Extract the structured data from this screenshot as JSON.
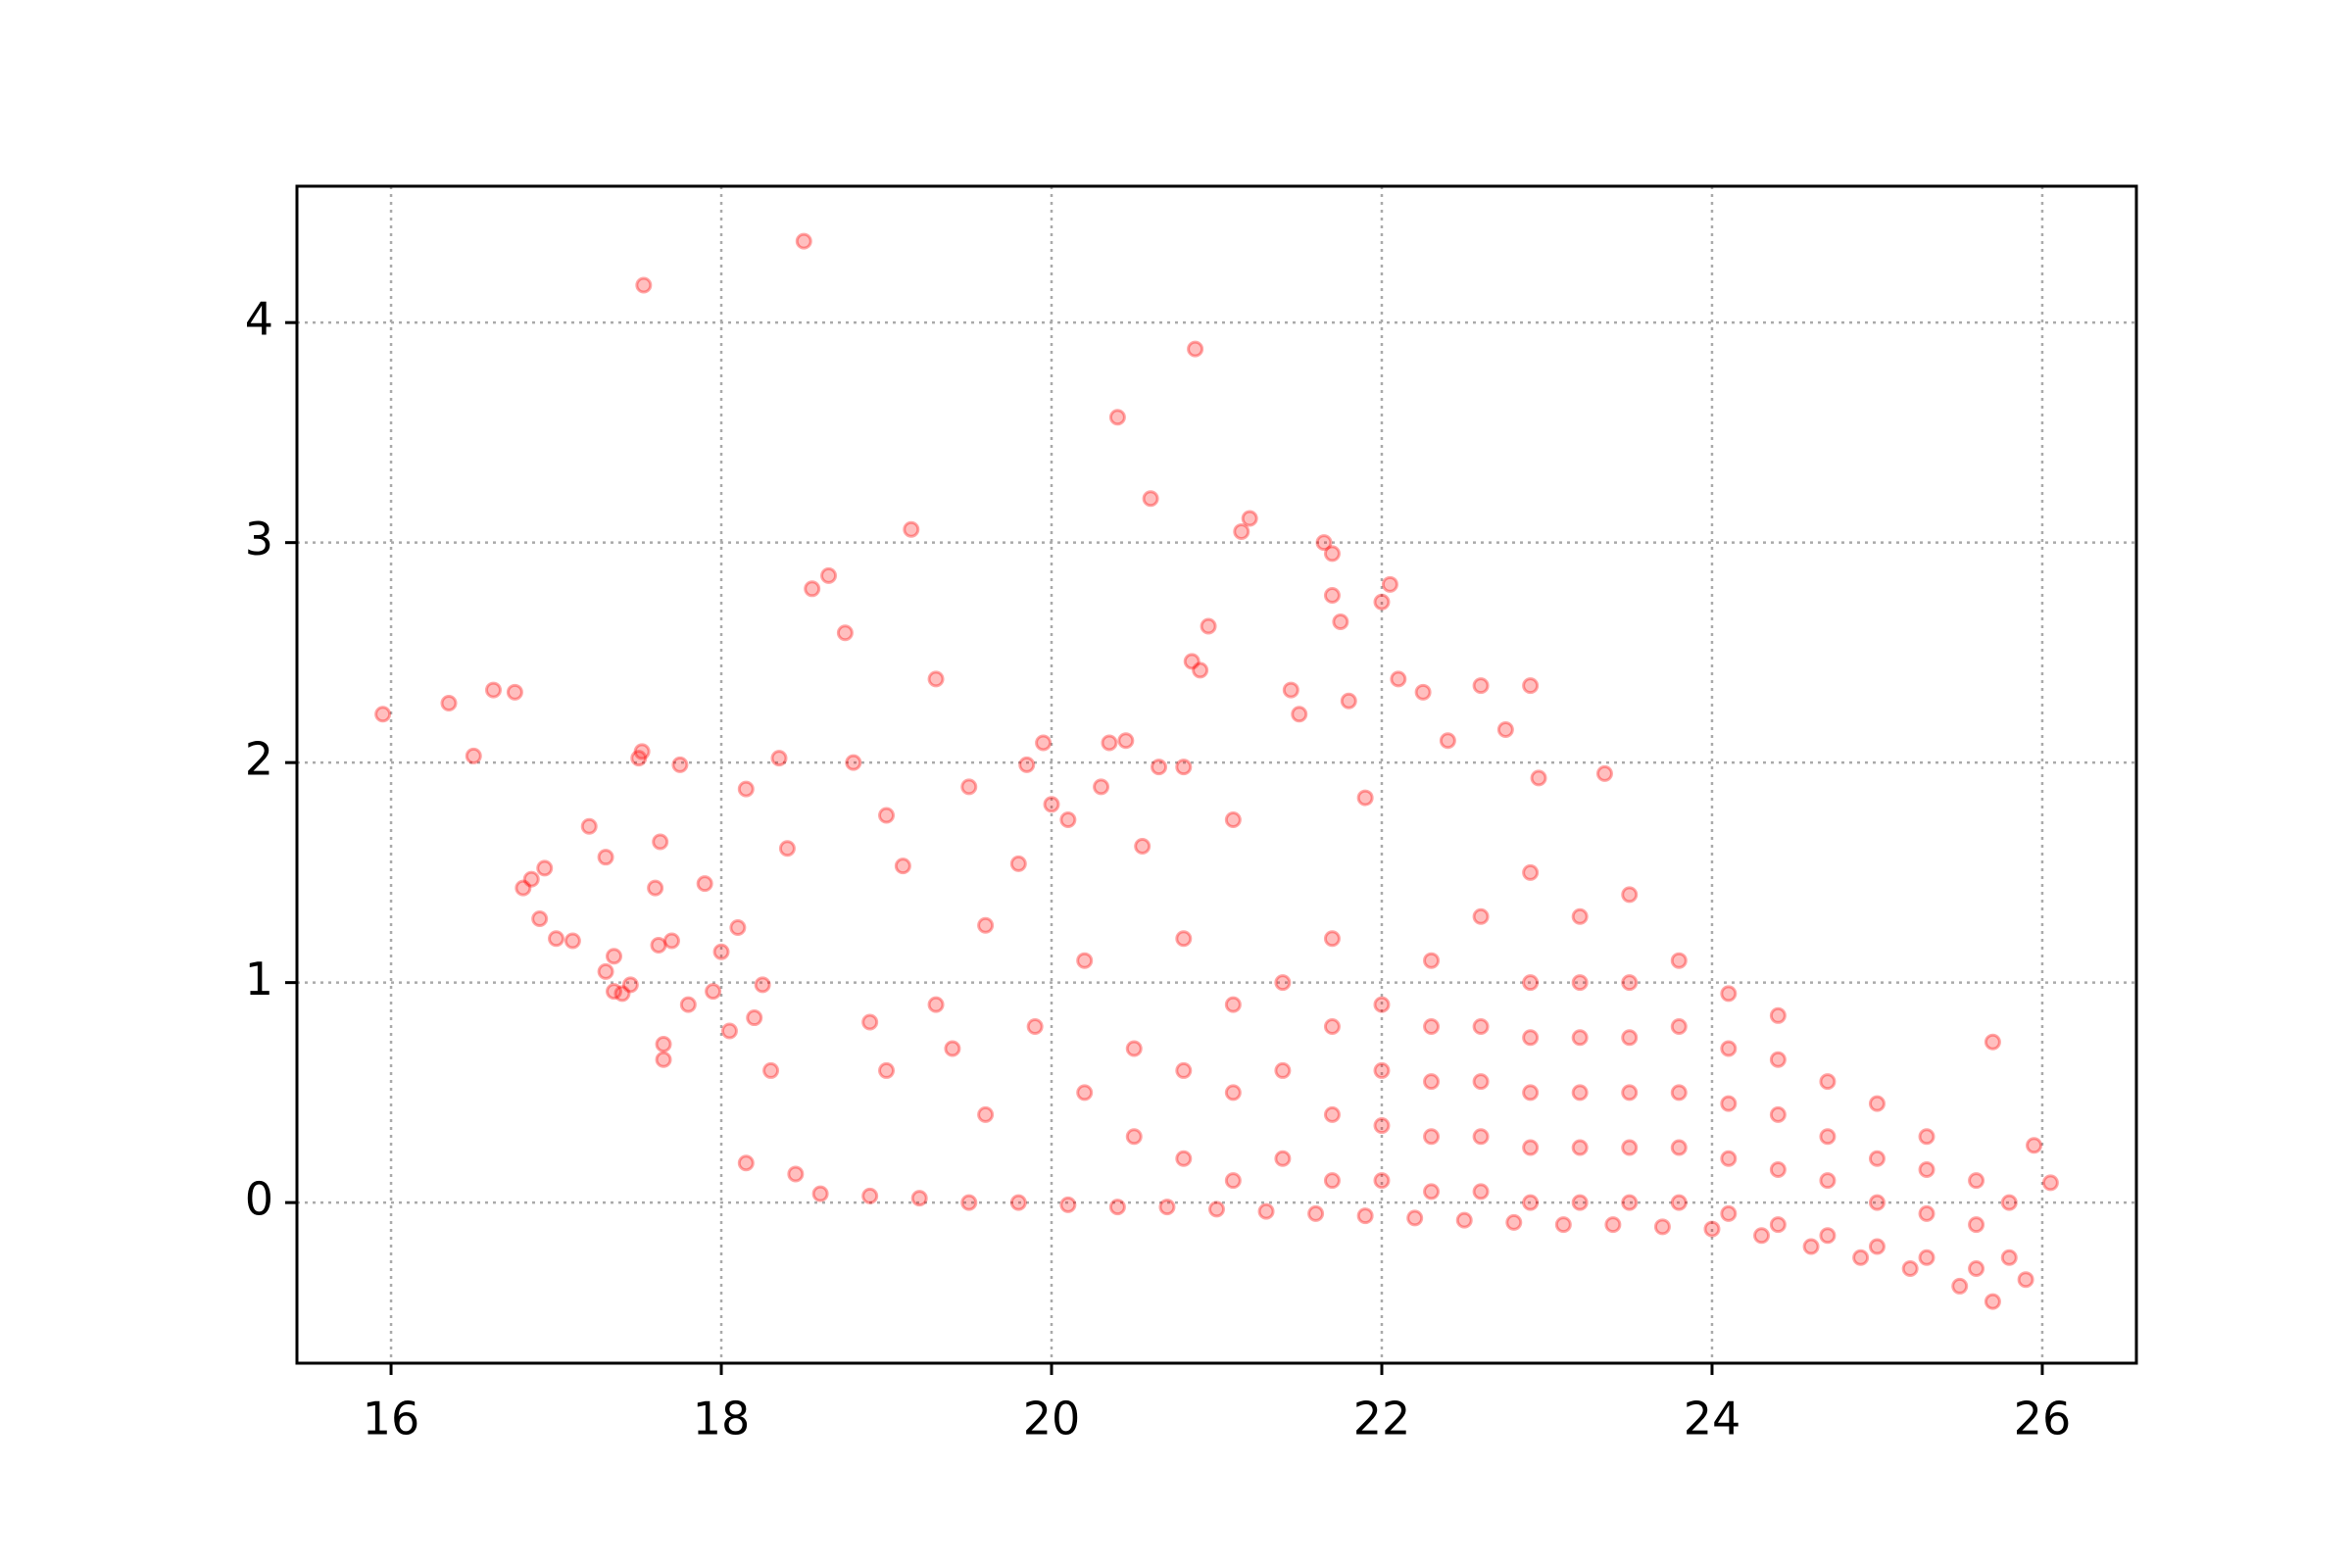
{
  "chart_data": {
    "type": "scatter",
    "x": [
      15.95,
      16.35,
      16.5,
      16.62,
      16.75,
      16.8,
      16.85,
      16.9,
      16.93,
      17.0,
      17.1,
      17.2,
      17.3,
      17.3,
      17.35,
      17.35,
      17.4,
      17.45,
      17.5,
      17.52,
      17.53,
      17.6,
      17.62,
      17.63,
      17.65,
      17.65,
      17.7,
      17.75,
      17.8,
      17.9,
      17.95,
      18.0,
      18.05,
      18.1,
      18.15,
      18.15,
      18.2,
      18.25,
      18.3,
      18.35,
      18.4,
      18.45,
      18.5,
      18.55,
      18.65,
      18.75,
      18.8,
      18.9,
      19.0,
      19.1,
      19.15,
      19.3,
      19.4,
      19.5,
      19.6,
      19.8,
      19.85,
      19.95,
      20.0,
      20.1,
      20.3,
      20.35,
      20.4,
      20.45,
      20.55,
      20.6,
      20.65,
      20.8,
      20.85,
      20.87,
      20.9,
      20.95,
      21.1,
      21.15,
      21.2,
      21.45,
      21.5,
      21.65,
      21.7,
      21.7,
      21.75,
      21.8,
      21.9,
      22.0,
      22.05,
      22.1,
      22.25,
      22.4,
      22.6,
      22.75,
      22.9,
      22.95,
      23.35,
      25.7,
      25.95,
      26.05,
      18.6,
      18.9,
      19.2,
      19.5,
      19.8,
      20.1,
      20.4,
      20.7,
      21.0,
      21.3,
      21.6,
      21.9,
      22.2,
      22.5,
      22.8,
      23.1,
      23.4,
      23.7,
      24.0,
      24.3,
      24.6,
      24.9,
      25.2,
      25.5,
      25.7,
      25.9,
      19.0,
      19.3,
      19.6,
      19.9,
      20.2,
      20.2,
      20.5,
      20.5,
      20.8,
      20.8,
      20.8,
      21.1,
      21.1,
      21.1,
      21.4,
      21.4,
      21.4,
      21.7,
      21.7,
      21.7,
      21.7,
      22.0,
      22.0,
      22.0,
      22.0,
      22.3,
      22.3,
      22.3,
      22.3,
      22.3,
      22.6,
      22.6,
      22.6,
      22.6,
      22.6,
      22.9,
      22.9,
      22.9,
      22.9,
      22.9,
      22.9,
      23.2,
      23.2,
      23.2,
      23.2,
      23.2,
      23.2,
      23.5,
      23.5,
      23.5,
      23.5,
      23.5,
      23.5,
      23.8,
      23.8,
      23.8,
      23.8,
      23.8,
      24.1,
      24.1,
      24.1,
      24.1,
      24.1,
      24.4,
      24.4,
      24.4,
      24.4,
      24.4,
      24.7,
      24.7,
      24.7,
      24.7,
      25.0,
      25.0,
      25.0,
      25.0,
      25.3,
      25.3,
      25.3,
      25.3,
      25.6,
      25.6,
      25.6,
      25.8,
      25.8
    ],
    "values": [
      2.22,
      2.27,
      2.03,
      2.33,
      2.32,
      1.43,
      1.47,
      1.29,
      1.52,
      1.2,
      1.19,
      1.71,
      1.57,
      1.05,
      0.96,
      1.12,
      0.95,
      0.99,
      2.02,
      2.05,
      4.17,
      1.43,
      1.17,
      1.64,
      0.65,
      0.72,
      1.19,
      1.99,
      0.9,
      1.45,
      0.96,
      1.14,
      0.78,
      1.25,
      1.88,
      0.18,
      0.84,
      0.99,
      0.6,
      2.02,
      1.61,
      0.13,
      4.37,
      2.79,
      2.85,
      2.59,
      2.0,
      0.82,
      1.76,
      1.53,
      3.06,
      2.38,
      0.7,
      1.89,
      1.26,
      1.54,
      1.99,
      2.09,
      1.81,
      1.74,
      1.89,
      2.09,
      3.57,
      2.1,
      1.62,
      3.2,
      1.98,
      1.98,
      2.46,
      3.88,
      2.42,
      2.62,
      1.74,
      3.05,
      3.11,
      2.33,
      2.22,
      3.0,
      2.95,
      2.76,
      2.64,
      2.28,
      1.84,
      2.73,
      2.81,
      2.38,
      2.32,
      2.1,
      2.35,
      2.15,
      2.35,
      1.93,
      1.95,
      0.73,
      0.26,
      0.09,
      0.04,
      0.03,
      0.02,
      0.0,
      0.0,
      -0.01,
      -0.02,
      -0.02,
      -0.03,
      -0.04,
      -0.05,
      -0.06,
      -0.07,
      -0.08,
      -0.09,
      -0.1,
      -0.1,
      -0.11,
      -0.12,
      -0.15,
      -0.2,
      -0.25,
      -0.3,
      -0.38,
      -0.45,
      -0.35,
      0.6,
      0.9,
      0.4,
      0.8,
      0.5,
      1.1,
      0.3,
      0.7,
      0.2,
      0.6,
      1.2,
      0.1,
      0.5,
      0.9,
      0.2,
      0.6,
      1.0,
      0.1,
      0.4,
      0.8,
      1.2,
      0.1,
      0.35,
      0.6,
      0.9,
      0.05,
      0.3,
      0.55,
      0.8,
      1.1,
      0.05,
      0.3,
      0.55,
      0.8,
      1.3,
      0.0,
      0.25,
      0.5,
      0.75,
      1.0,
      1.5,
      0.0,
      0.25,
      0.5,
      0.75,
      1.0,
      1.3,
      0.0,
      0.25,
      0.5,
      0.75,
      1.0,
      1.4,
      0.0,
      0.25,
      0.5,
      0.8,
      1.1,
      -0.05,
      0.2,
      0.45,
      0.7,
      0.95,
      -0.1,
      0.15,
      0.4,
      0.65,
      0.85,
      -0.15,
      0.1,
      0.3,
      0.55,
      -0.2,
      0.0,
      0.2,
      0.45,
      -0.25,
      -0.05,
      0.15,
      0.3,
      -0.3,
      -0.1,
      0.1,
      -0.25,
      0.0
    ],
    "color": "red",
    "xlim": [
      15.43,
      26.57
    ],
    "ylim": [
      -0.73,
      4.62
    ],
    "xticks": [
      16,
      18,
      20,
      22,
      24,
      26
    ],
    "yticks": [
      0,
      1,
      2,
      3,
      4
    ],
    "grid": true
  }
}
